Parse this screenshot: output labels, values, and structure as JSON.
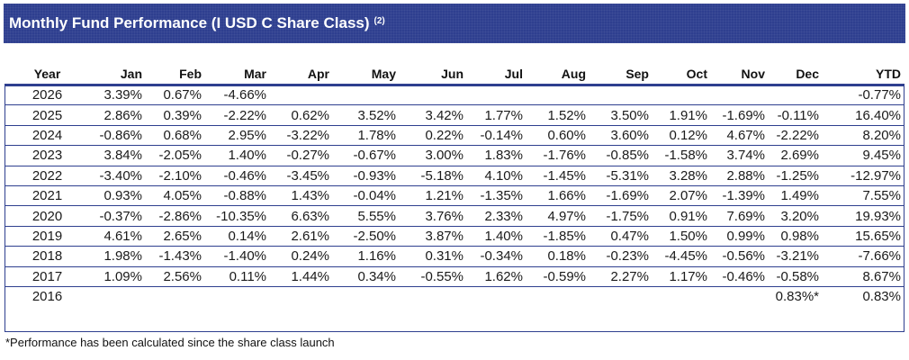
{
  "title": {
    "text": "Monthly Fund Performance (I USD C Share Class)",
    "superscript": "(2)"
  },
  "colors": {
    "header_band": "#2e3f8f",
    "rule": "#2e3f8f"
  },
  "table": {
    "columns": [
      "Year",
      "Jan",
      "Feb",
      "Mar",
      "Apr",
      "May",
      "Jun",
      "Jul",
      "Aug",
      "Sep",
      "Oct",
      "Nov",
      "Dec",
      "YTD"
    ],
    "rows": [
      [
        "2026",
        "3.39%",
        "0.67%",
        "-4.66%",
        "",
        "",
        "",
        "",
        "",
        "",
        "",
        "",
        "",
        "-0.77%"
      ],
      [
        "2025",
        "2.86%",
        "0.39%",
        "-2.22%",
        "0.62%",
        "3.52%",
        "3.42%",
        "1.77%",
        "1.52%",
        "3.50%",
        "1.91%",
        "-1.69%",
        "-0.11%",
        "16.40%"
      ],
      [
        "2024",
        "-0.86%",
        "0.68%",
        "2.95%",
        "-3.22%",
        "1.78%",
        "0.22%",
        "-0.14%",
        "0.60%",
        "3.60%",
        "0.12%",
        "4.67%",
        "-2.22%",
        "8.20%"
      ],
      [
        "2023",
        "3.84%",
        "-2.05%",
        "1.40%",
        "-0.27%",
        "-0.67%",
        "3.00%",
        "1.83%",
        "-1.76%",
        "-0.85%",
        "-1.58%",
        "3.74%",
        "2.69%",
        "9.45%"
      ],
      [
        "2022",
        "-3.40%",
        "-2.10%",
        "-0.46%",
        "-3.45%",
        "-0.93%",
        "-5.18%",
        "4.10%",
        "-1.45%",
        "-5.31%",
        "3.28%",
        "2.88%",
        "-1.25%",
        "-12.97%"
      ],
      [
        "2021",
        "0.93%",
        "4.05%",
        "-0.88%",
        "1.43%",
        "-0.04%",
        "1.21%",
        "-1.35%",
        "1.66%",
        "-1.69%",
        "2.07%",
        "-1.39%",
        "1.49%",
        "7.55%"
      ],
      [
        "2020",
        "-0.37%",
        "-2.86%",
        "-10.35%",
        "6.63%",
        "5.55%",
        "3.76%",
        "2.33%",
        "4.97%",
        "-1.75%",
        "0.91%",
        "7.69%",
        "3.20%",
        "19.93%"
      ],
      [
        "2019",
        "4.61%",
        "2.65%",
        "0.14%",
        "2.61%",
        "-2.50%",
        "3.87%",
        "1.40%",
        "-1.85%",
        "0.47%",
        "1.50%",
        "0.99%",
        "0.98%",
        "15.65%"
      ],
      [
        "2018",
        "1.98%",
        "-1.43%",
        "-1.40%",
        "0.24%",
        "1.16%",
        "0.31%",
        "-0.34%",
        "0.18%",
        "-0.23%",
        "-4.45%",
        "-0.56%",
        "-3.21%",
        "-7.66%"
      ],
      [
        "2017",
        "1.09%",
        "2.56%",
        "0.11%",
        "1.44%",
        "0.34%",
        "-0.55%",
        "1.62%",
        "-0.59%",
        "2.27%",
        "1.17%",
        "-0.46%",
        "-0.58%",
        "8.67%"
      ],
      [
        "2016",
        "",
        "",
        "",
        "",
        "",
        "",
        "",
        "",
        "",
        "",
        "",
        "0.83%*",
        "0.83%"
      ]
    ]
  },
  "footnote": "*Performance has been calculated since the share class launch"
}
